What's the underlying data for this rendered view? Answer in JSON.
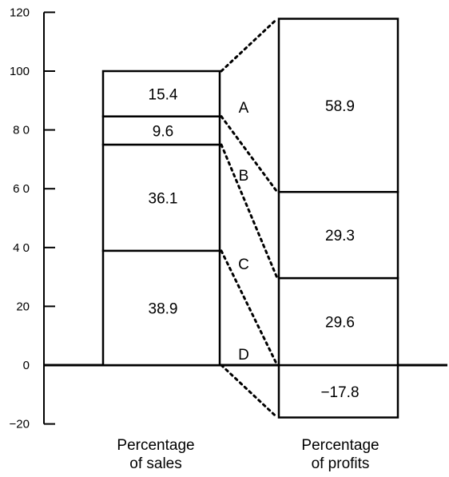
{
  "chart_data": {
    "type": "bar",
    "subtype": "stacked-comparison",
    "title": "",
    "xlabel": "",
    "ylabel": "",
    "ylim": [
      -20,
      120
    ],
    "yticks": [
      {
        "value": -20,
        "label": "−20"
      },
      {
        "value": 0,
        "label": "0"
      },
      {
        "value": 20,
        "label": "20"
      },
      {
        "value": 40,
        "label": "4 0"
      },
      {
        "value": 60,
        "label": "6 0"
      },
      {
        "value": 80,
        "label": "8 0"
      },
      {
        "value": 100,
        "label": "100"
      },
      {
        "value": 120,
        "label": "120"
      }
    ],
    "grid": false,
    "segment_labels": [
      "A",
      "B",
      "C",
      "D"
    ],
    "bars": [
      {
        "name": "Percentage of sales",
        "label_line1": "Percentage",
        "label_line2": "of sales",
        "segments": [
          {
            "category": "D",
            "value": 38.9,
            "label": "38.9"
          },
          {
            "category": "C",
            "value": 36.1,
            "label": "36.1"
          },
          {
            "category": "B",
            "value": 9.6,
            "label": "9.6"
          },
          {
            "category": "A",
            "value": 15.4,
            "label": "15.4"
          }
        ]
      },
      {
        "name": "Percentage of profits",
        "label_line1": "Percentage",
        "label_line2": "of profits",
        "segments": [
          {
            "category": "D",
            "value": -17.8,
            "label": "−17.8"
          },
          {
            "category": "C",
            "value": 29.6,
            "label": "29.6"
          },
          {
            "category": "B",
            "value": 29.3,
            "label": "29.3"
          },
          {
            "category": "A",
            "value": 58.9,
            "label": "58.9"
          }
        ]
      }
    ]
  }
}
